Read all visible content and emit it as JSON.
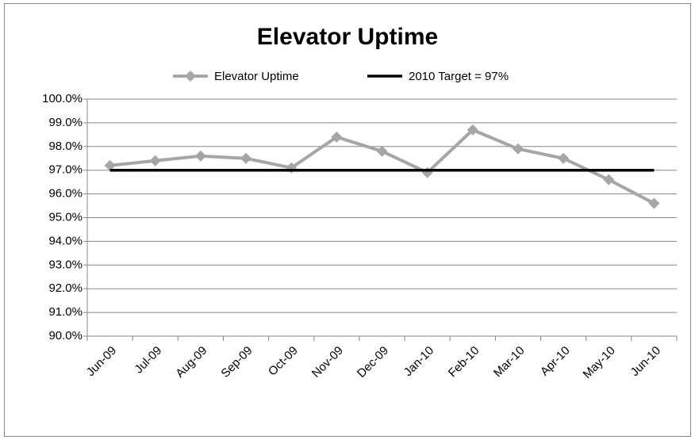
{
  "chart_data": {
    "type": "line",
    "title": "Elevator Uptime",
    "categories": [
      "Jun-09",
      "Jul-09",
      "Aug-09",
      "Sep-09",
      "Oct-09",
      "Nov-09",
      "Dec-09",
      "Jan-10",
      "Feb-10",
      "Mar-10",
      "Apr-10",
      "May-10",
      "Jun-10"
    ],
    "series": [
      {
        "name": "Elevator Uptime",
        "color": "#a6a6a6",
        "marker": "diamond",
        "values": [
          97.2,
          97.4,
          97.6,
          97.5,
          97.1,
          98.4,
          97.8,
          96.9,
          98.7,
          97.9,
          97.5,
          96.6,
          95.6
        ]
      },
      {
        "name": "2010 Target = 97%",
        "color": "#000000",
        "values": [
          97,
          97,
          97,
          97,
          97,
          97,
          97,
          97,
          97,
          97,
          97,
          97,
          97
        ]
      }
    ],
    "ylim": [
      90,
      100
    ],
    "yticks": [
      {
        "value": 90,
        "label": "90.0%"
      },
      {
        "value": 91,
        "label": "91.0%"
      },
      {
        "value": 92,
        "label": "92.0%"
      },
      {
        "value": 93,
        "label": "93.0%"
      },
      {
        "value": 94,
        "label": "94.0%"
      },
      {
        "value": 95,
        "label": "95.0%"
      },
      {
        "value": 96,
        "label": "96.0%"
      },
      {
        "value": 97,
        "label": "97.0%"
      },
      {
        "value": 98,
        "label": "98.0%"
      },
      {
        "value": 99,
        "label": "99.0%"
      },
      {
        "value": 100,
        "label": "100.0%"
      }
    ],
    "grid": true,
    "legend": "top"
  }
}
